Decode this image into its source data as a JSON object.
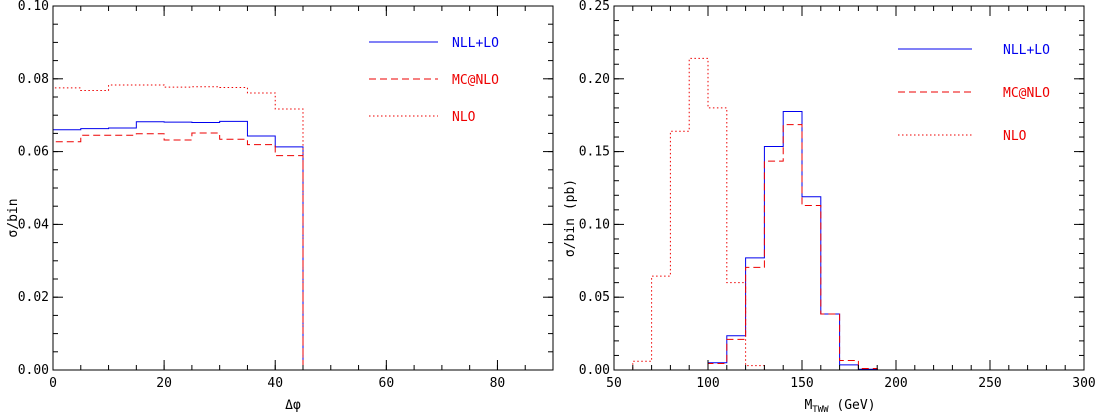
{
  "chart_data": [
    {
      "type": "line",
      "xlabel": "Δφ",
      "ylabel": "σ/bin",
      "xlim": [
        0,
        90
      ],
      "ylim": [
        0,
        0.1
      ],
      "x_ticks": [
        "0",
        "20",
        "40",
        "60",
        "80"
      ],
      "x_tick_values": [
        0,
        20,
        40,
        60,
        80
      ],
      "y_ticks": [
        "0.00",
        "0.02",
        "0.04",
        "0.06",
        "0.08",
        "0.10"
      ],
      "y_tick_values": [
        0,
        0.02,
        0.04,
        0.06,
        0.08,
        0.1
      ],
      "x_minor_step": 5,
      "y_minor_step": 0.005,
      "legend_placement": "top-right",
      "series": [
        {
          "name": "NLL+LO",
          "style": "solid",
          "color": "#0000ee",
          "bin_edges": [
            0,
            5,
            10,
            15,
            20,
            25,
            30,
            35,
            40,
            45,
            50,
            55,
            60,
            65,
            70,
            75,
            80,
            85,
            90
          ],
          "values": [
            0.066,
            0.0663,
            0.0665,
            0.0682,
            0.0681,
            0.068,
            0.0683,
            0.0643,
            0.0613,
            0,
            0,
            0,
            0,
            0,
            0,
            0,
            0,
            0
          ]
        },
        {
          "name": "MC@NLO",
          "style": "dashed",
          "color": "#ee0000",
          "bin_edges": [
            0,
            5,
            10,
            15,
            20,
            25,
            30,
            35,
            40,
            45,
            50,
            55,
            60,
            65,
            70,
            75,
            80,
            85,
            90
          ],
          "values": [
            0.0627,
            0.0645,
            0.0645,
            0.0649,
            0.0632,
            0.0651,
            0.0634,
            0.0619,
            0.0589,
            0,
            0,
            0,
            0,
            0,
            0,
            0,
            0,
            0
          ]
        },
        {
          "name": "NLO",
          "style": "dotted",
          "color": "#ee0000",
          "bin_edges": [
            0,
            5,
            10,
            15,
            20,
            25,
            30,
            35,
            40,
            45,
            50,
            55,
            60,
            65,
            70,
            75,
            80,
            85,
            90
          ],
          "values": [
            0.0775,
            0.0768,
            0.0783,
            0.0783,
            0.0777,
            0.0778,
            0.0776,
            0.0761,
            0.0717,
            0,
            0,
            0,
            0,
            0,
            0,
            0,
            0,
            0
          ]
        }
      ]
    },
    {
      "type": "line",
      "xlabel": "M_TWW (GeV)",
      "xlabel_main": "M",
      "xlabel_sub": "TWW",
      "xlabel_tail": " (GeV)",
      "ylabel": "σ/bin (pb)",
      "xlim": [
        50,
        300
      ],
      "ylim": [
        0,
        0.25
      ],
      "x_ticks": [
        "50",
        "100",
        "150",
        "200",
        "250",
        "300"
      ],
      "x_tick_values": [
        50,
        100,
        150,
        200,
        250,
        300
      ],
      "y_ticks": [
        "0.00",
        "0.05",
        "0.10",
        "0.15",
        "0.20",
        "0.25"
      ],
      "y_tick_values": [
        0,
        0.05,
        0.1,
        0.15,
        0.2,
        0.25
      ],
      "x_minor_step": 10,
      "y_minor_step": 0.01,
      "legend_placement": "top-right",
      "series": [
        {
          "name": "NLL+LO",
          "style": "solid",
          "color": "#0000ee",
          "bin_edges": [
            50,
            60,
            70,
            80,
            90,
            100,
            110,
            120,
            130,
            140,
            150,
            160,
            170,
            180,
            190,
            200,
            210,
            220,
            230,
            240,
            250,
            260,
            270,
            280,
            290,
            300
          ],
          "values": [
            0,
            0,
            0,
            0,
            0,
            0.005,
            0.0235,
            0.077,
            0.1535,
            0.1775,
            0.119,
            0.0385,
            0.0035,
            0.0005,
            0,
            0,
            0,
            0,
            0,
            0,
            0,
            0,
            0,
            0,
            0
          ]
        },
        {
          "name": "MC@NLO",
          "style": "dashed",
          "color": "#ee0000",
          "bin_edges": [
            50,
            60,
            70,
            80,
            90,
            100,
            110,
            120,
            130,
            140,
            150,
            160,
            170,
            180,
            190,
            200,
            210,
            220,
            230,
            240,
            250,
            260,
            270,
            280,
            290,
            300
          ],
          "values": [
            0,
            0,
            0,
            0,
            0,
            0.0045,
            0.021,
            0.0705,
            0.1435,
            0.1685,
            0.113,
            0.0385,
            0.0065,
            0.001,
            0,
            0,
            0,
            0,
            0,
            0,
            0,
            0,
            0,
            0,
            0
          ]
        },
        {
          "name": "NLO",
          "style": "dotted",
          "color": "#ee0000",
          "bin_edges": [
            50,
            60,
            70,
            80,
            90,
            100,
            110,
            120,
            130,
            140,
            150,
            160,
            170,
            180,
            190,
            200,
            210,
            220,
            230,
            240,
            250,
            260,
            270,
            280,
            290,
            300
          ],
          "values": [
            0,
            0.006,
            0.0645,
            0.164,
            0.214,
            0.18,
            0.06,
            0.003,
            0,
            0,
            0,
            0,
            0,
            0,
            0,
            0,
            0,
            0,
            0,
            0,
            0,
            0,
            0,
            0,
            0
          ]
        }
      ]
    }
  ]
}
